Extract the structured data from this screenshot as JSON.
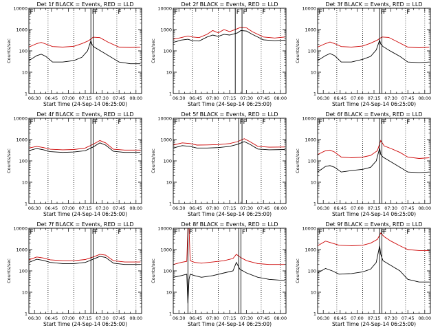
{
  "chart_data": [
    {
      "type": "line",
      "title": "Det 1f BLACK = Events, RED = LLD",
      "xlabel": "Start Time (24-Sep-14 06:25:00)",
      "ylabel": "Counts/sec",
      "yscale": "log",
      "ylim": [
        1,
        10000
      ],
      "xlim": [
        "06:25",
        "08:05"
      ],
      "x_ticks": [
        "06:30",
        "06:45",
        "07:00",
        "07:15",
        "07:30",
        "07:45",
        "08:00"
      ],
      "y_ticks": [
        "1",
        "10",
        "100",
        "1000",
        "10000"
      ],
      "markers": [
        "F",
        "F",
        "F",
        "F"
      ],
      "series": [
        {
          "color": "#cc0000",
          "x": [
            "06:25",
            "06:32",
            "06:36",
            "06:40",
            "06:46",
            "06:55",
            "07:05",
            "07:12",
            "07:18",
            "07:22",
            "07:28",
            "07:35",
            "07:45",
            "07:55",
            "08:04"
          ],
          "values": [
            150,
            220,
            250,
            210,
            160,
            150,
            165,
            220,
            300,
            440,
            420,
            260,
            150,
            145,
            150
          ]
        },
        {
          "color": "#000000",
          "x": [
            "06:25",
            "06:32",
            "06:36",
            "06:40",
            "06:46",
            "06:55",
            "07:05",
            "07:12",
            "07:17",
            "07:20",
            "07:21",
            "07:23",
            "07:30",
            "07:38",
            "07:45",
            "07:55",
            "08:04"
          ],
          "values": [
            35,
            60,
            70,
            55,
            30,
            30,
            35,
            50,
            100,
            300,
            200,
            150,
            90,
            50,
            30,
            25,
            25
          ]
        }
      ],
      "vlines_solid": [
        "07:20",
        "07:22"
      ],
      "vlines_dotted": [
        "06:42",
        "07:05",
        "07:43",
        "08:00"
      ]
    },
    {
      "type": "line",
      "title": "Det 2f BLACK = Events, RED = LLD",
      "xlabel": "Start Time (24-Sep-14 06:25:00)",
      "ylabel": "Counts/sec",
      "yscale": "log",
      "ylim": [
        1,
        10000
      ],
      "xlim": [
        "06:25",
        "08:05"
      ],
      "x_ticks": [
        "06:30",
        "06:45",
        "07:00",
        "07:15",
        "07:30",
        "07:45",
        "08:00"
      ],
      "y_ticks": [
        "1",
        "10",
        "100",
        "1000",
        "10000"
      ],
      "markers": [
        "F",
        "F",
        "F",
        "F"
      ],
      "series": [
        {
          "color": "#cc0000",
          "x": [
            "06:25",
            "06:32",
            "06:38",
            "06:42",
            "06:48",
            "06:55",
            "07:00",
            "07:05",
            "07:10",
            "07:15",
            "07:22",
            "07:25",
            "07:30",
            "07:35",
            "07:45",
            "07:55",
            "08:04"
          ],
          "values": [
            350,
            420,
            500,
            450,
            420,
            600,
            900,
            700,
            1000,
            800,
            1100,
            1300,
            1200,
            800,
            450,
            400,
            450
          ]
        },
        {
          "color": "#000000",
          "x": [
            "06:25",
            "06:32",
            "06:38",
            "06:42",
            "06:48",
            "06:55",
            "07:00",
            "07:05",
            "07:10",
            "07:15",
            "07:22",
            "07:25",
            "07:30",
            "07:35",
            "07:45",
            "07:55",
            "08:04"
          ],
          "values": [
            250,
            320,
            350,
            300,
            290,
            450,
            550,
            480,
            600,
            550,
            700,
            900,
            850,
            600,
            330,
            300,
            320
          ]
        }
      ],
      "vlines_solid": [
        "07:20",
        "07:26"
      ],
      "vlines_dotted": [
        "06:42",
        "07:05",
        "07:43",
        "08:00"
      ]
    },
    {
      "type": "line",
      "title": "Det 3f BLACK = Events, RED = LLD",
      "xlabel": "Start Time (24-Sep-14 06:25:00)",
      "ylabel": "Counts/sec",
      "yscale": "log",
      "ylim": [
        1,
        10000
      ],
      "xlim": [
        "06:25",
        "08:05"
      ],
      "x_ticks": [
        "06:30",
        "06:45",
        "07:00",
        "07:15",
        "07:30",
        "07:45",
        "08:00"
      ],
      "y_ticks": [
        "1",
        "10",
        "100",
        "1000",
        "10000"
      ],
      "markers": [
        "F",
        "F",
        "F",
        "F"
      ],
      "series": [
        {
          "color": "#cc0000",
          "x": [
            "06:25",
            "06:32",
            "06:36",
            "06:40",
            "06:46",
            "06:55",
            "07:05",
            "07:12",
            "07:18",
            "07:22",
            "07:28",
            "07:35",
            "07:45",
            "07:55",
            "08:04"
          ],
          "values": [
            150,
            220,
            260,
            220,
            160,
            150,
            170,
            230,
            320,
            450,
            430,
            280,
            150,
            140,
            150
          ]
        },
        {
          "color": "#000000",
          "x": [
            "06:25",
            "06:32",
            "06:36",
            "06:40",
            "06:46",
            "06:55",
            "07:05",
            "07:12",
            "07:17",
            "07:20",
            "07:21",
            "07:23",
            "07:30",
            "07:38",
            "07:45",
            "07:55",
            "08:04"
          ],
          "values": [
            35,
            60,
            75,
            60,
            30,
            30,
            40,
            55,
            110,
            320,
            210,
            160,
            95,
            55,
            30,
            28,
            30
          ]
        }
      ],
      "vlines_solid": [
        "07:20",
        "07:22"
      ],
      "vlines_dotted": [
        "06:42",
        "07:05",
        "07:43",
        "08:00"
      ]
    },
    {
      "type": "line",
      "title": "Det 4f BLACK = Events, RED = LLD",
      "xlabel": "Start Time (24-Sep-14 06:25:00)",
      "ylabel": "Counts/sec",
      "yscale": "log",
      "ylim": [
        1,
        10000
      ],
      "xlim": [
        "06:25",
        "08:05"
      ],
      "x_ticks": [
        "06:30",
        "06:45",
        "07:00",
        "07:15",
        "07:30",
        "07:45",
        "08:00"
      ],
      "y_ticks": [
        "1",
        "10",
        "100",
        "1000",
        "10000"
      ],
      "markers": [
        "F",
        "F",
        "F",
        "F"
      ],
      "series": [
        {
          "color": "#cc0000",
          "x": [
            "06:25",
            "06:32",
            "06:38",
            "06:44",
            "06:55",
            "07:05",
            "07:15",
            "07:22",
            "07:28",
            "07:33",
            "07:40",
            "07:50",
            "08:04"
          ],
          "values": [
            400,
            480,
            420,
            350,
            330,
            340,
            400,
            600,
            900,
            700,
            350,
            320,
            320
          ]
        },
        {
          "color": "#000000",
          "x": [
            "06:25",
            "06:32",
            "06:38",
            "06:44",
            "06:55",
            "07:05",
            "07:15",
            "07:22",
            "07:28",
            "07:33",
            "07:40",
            "07:50",
            "08:04"
          ],
          "values": [
            300,
            380,
            330,
            270,
            250,
            260,
            300,
            450,
            700,
            550,
            280,
            250,
            250
          ]
        }
      ],
      "vlines_solid": [
        "07:20",
        "07:22"
      ],
      "vlines_dotted": [
        "06:42",
        "07:05",
        "07:43",
        "08:00"
      ]
    },
    {
      "type": "line",
      "title": "Det 5f BLACK = Events, RED = LLD",
      "xlabel": "Start Time (24-Sep-14 06:25:00)",
      "ylabel": "Counts/sec",
      "yscale": "log",
      "ylim": [
        1,
        10000
      ],
      "xlim": [
        "06:25",
        "08:05"
      ],
      "x_ticks": [
        "06:30",
        "06:45",
        "07:00",
        "07:15",
        "07:30",
        "07:45",
        "08:00"
      ],
      "y_ticks": [
        "1",
        "10",
        "100",
        "1000",
        "10000"
      ],
      "markers": [
        "F",
        "F",
        "F",
        "F"
      ],
      "series": [
        {
          "color": "#cc0000",
          "x": [
            "06:25",
            "06:33",
            "06:40",
            "06:46",
            "06:55",
            "07:05",
            "07:15",
            "07:22",
            "07:28",
            "07:33",
            "07:40",
            "07:50",
            "08:04"
          ],
          "values": [
            550,
            700,
            650,
            550,
            560,
            580,
            650,
            800,
            1100,
            800,
            480,
            440,
            450
          ]
        },
        {
          "color": "#000000",
          "x": [
            "06:25",
            "06:33",
            "06:40",
            "06:46",
            "06:55",
            "07:05",
            "07:15",
            "07:22",
            "07:28",
            "07:33",
            "07:40",
            "07:50",
            "08:04"
          ],
          "values": [
            400,
            520,
            480,
            400,
            400,
            420,
            480,
            600,
            800,
            600,
            360,
            330,
            340
          ]
        }
      ],
      "vlines_solid": [
        "07:23",
        "07:26"
      ],
      "vlines_dotted": [
        "06:42",
        "07:05",
        "07:43",
        "08:00"
      ]
    },
    {
      "type": "line",
      "title": "Det 6f BLACK = Events, RED = LLD",
      "xlabel": "Start Time (24-Sep-14 06:25:00)",
      "ylabel": "Counts/sec",
      "yscale": "log",
      "ylim": [
        1,
        10000
      ],
      "xlim": [
        "06:25",
        "08:05"
      ],
      "x_ticks": [
        "06:30",
        "06:45",
        "07:00",
        "07:15",
        "07:30",
        "07:45",
        "08:00"
      ],
      "y_ticks": [
        "1",
        "10",
        "100",
        "1000",
        "10000"
      ],
      "markers": [
        "F",
        "F",
        "F",
        "F"
      ],
      "series": [
        {
          "color": "#cc0000",
          "x": [
            "06:25",
            "06:32",
            "06:36",
            "06:40",
            "06:46",
            "06:55",
            "07:05",
            "07:12",
            "07:18",
            "07:21",
            "07:24",
            "07:30",
            "07:38",
            "07:45",
            "07:55",
            "08:04"
          ],
          "values": [
            200,
            300,
            320,
            260,
            150,
            140,
            150,
            180,
            300,
            900,
            500,
            380,
            250,
            150,
            130,
            140
          ]
        },
        {
          "color": "#000000",
          "x": [
            "06:25",
            "06:32",
            "06:36",
            "06:40",
            "06:46",
            "06:55",
            "07:05",
            "07:12",
            "07:17",
            "07:20",
            "07:21",
            "07:23",
            "07:30",
            "07:38",
            "07:45",
            "07:55",
            "08:04"
          ],
          "values": [
            30,
            55,
            60,
            50,
            30,
            35,
            40,
            50,
            100,
            400,
            200,
            150,
            90,
            50,
            30,
            28,
            30
          ]
        }
      ],
      "vlines_solid": [
        "07:20",
        "07:22"
      ],
      "vlines_dotted": [
        "06:42",
        "07:05",
        "07:43",
        "08:00"
      ]
    },
    {
      "type": "line",
      "title": "Det 7f BLACK = Events, RED = LLD",
      "xlabel": "Start Time (24-Sep-14 06:25:00)",
      "ylabel": "Counts/sec",
      "yscale": "log",
      "ylim": [
        1,
        10000
      ],
      "xlim": [
        "06:25",
        "08:05"
      ],
      "x_ticks": [
        "06:30",
        "06:45",
        "07:00",
        "07:15",
        "07:30",
        "07:45",
        "08:00"
      ],
      "y_ticks": [
        "1",
        "10",
        "100",
        "1000",
        "10000"
      ],
      "markers": [
        "F",
        "F",
        "F",
        "F"
      ],
      "series": [
        {
          "color": "#cc0000",
          "x": [
            "06:25",
            "06:32",
            "06:38",
            "06:44",
            "06:55",
            "07:05",
            "07:15",
            "07:22",
            "07:28",
            "07:33",
            "07:40",
            "07:50",
            "08:04"
          ],
          "values": [
            330,
            450,
            400,
            330,
            300,
            300,
            340,
            450,
            600,
            550,
            300,
            260,
            260
          ]
        },
        {
          "color": "#000000",
          "x": [
            "06:25",
            "06:32",
            "06:38",
            "06:44",
            "06:55",
            "07:05",
            "07:15",
            "07:22",
            "07:28",
            "07:33",
            "07:40",
            "07:50",
            "08:04"
          ],
          "values": [
            250,
            350,
            310,
            250,
            220,
            220,
            250,
            350,
            480,
            430,
            230,
            200,
            200
          ]
        }
      ],
      "vlines_solid": [
        "07:20",
        "07:22"
      ],
      "vlines_dotted": [
        "06:42",
        "07:05",
        "07:43",
        "08:00"
      ]
    },
    {
      "type": "line",
      "title": "Det 8f BLACK = Events, RED = LLD",
      "xlabel": "Start Time (24-Sep-14 06:25:00)",
      "ylabel": "Counts/sec",
      "yscale": "log",
      "ylim": [
        1,
        10000
      ],
      "xlim": [
        "06:25",
        "08:05"
      ],
      "x_ticks": [
        "06:30",
        "06:45",
        "07:00",
        "07:15",
        "07:30",
        "07:45",
        "08:00"
      ],
      "y_ticks": [
        "1",
        "10",
        "100",
        "1000",
        "10000"
      ],
      "markers": [
        "F",
        "F",
        "F",
        "F"
      ],
      "series": [
        {
          "color": "#cc0000",
          "x": [
            "06:25",
            "06:32",
            "06:37",
            "06:38",
            "06:39",
            "06:40",
            "06:44",
            "06:50",
            "07:00",
            "07:10",
            "07:18",
            "07:21",
            "07:24",
            "07:30",
            "07:40",
            "07:50",
            "08:04"
          ],
          "values": [
            200,
            250,
            280,
            10000,
            10000,
            300,
            250,
            230,
            260,
            300,
            380,
            600,
            450,
            300,
            220,
            200,
            200
          ]
        },
        {
          "color": "#000000",
          "x": [
            "06:25",
            "06:32",
            "06:37",
            "06:38",
            "06:39",
            "06:40",
            "06:44",
            "06:50",
            "07:00",
            "07:10",
            "07:18",
            "07:21",
            "07:24",
            "07:30",
            "07:40",
            "07:50",
            "08:04"
          ],
          "values": [
            50,
            60,
            70,
            3,
            40,
            70,
            60,
            50,
            60,
            80,
            100,
            250,
            120,
            80,
            50,
            40,
            35
          ]
        }
      ],
      "vlines_solid": [
        "06:38",
        "07:23",
        "07:25"
      ],
      "vlines_dotted": [
        "06:42",
        "07:05",
        "07:43",
        "08:00"
      ]
    },
    {
      "type": "line",
      "title": "Det 9f BLACK = Events, RED = LLD",
      "xlabel": "Start Time (24-Sep-14 06:25:00)",
      "ylabel": "Counts/sec",
      "yscale": "log",
      "ylim": [
        1,
        10000
      ],
      "xlim": [
        "06:25",
        "08:05"
      ],
      "x_ticks": [
        "06:30",
        "06:45",
        "07:00",
        "07:15",
        "07:30",
        "07:45",
        "08:00"
      ],
      "y_ticks": [
        "1",
        "10",
        "100",
        "1000",
        "10000"
      ],
      "markers": [
        "F",
        "F",
        "F",
        "F"
      ],
      "series": [
        {
          "color": "#cc0000",
          "x": [
            "06:25",
            "06:32",
            "06:38",
            "06:44",
            "06:55",
            "07:05",
            "07:12",
            "07:18",
            "07:21",
            "07:24",
            "07:30",
            "07:38",
            "07:45",
            "07:55",
            "08:04"
          ],
          "values": [
            1500,
            2500,
            2000,
            1600,
            1500,
            1600,
            2000,
            3000,
            6000,
            4000,
            2500,
            1500,
            1000,
            900,
            900
          ]
        },
        {
          "color": "#000000",
          "x": [
            "06:25",
            "06:32",
            "06:38",
            "06:44",
            "06:55",
            "07:05",
            "07:12",
            "07:17",
            "07:20",
            "07:21",
            "07:23",
            "07:30",
            "07:38",
            "07:45",
            "07:55",
            "08:04"
          ],
          "values": [
            80,
            130,
            100,
            70,
            75,
            90,
            120,
            250,
            1500,
            600,
            300,
            180,
            100,
            40,
            30,
            30
          ]
        }
      ],
      "vlines_solid": [
        "07:20",
        "07:22"
      ],
      "vlines_dotted": [
        "06:42",
        "07:05",
        "07:43",
        "08:00"
      ]
    }
  ]
}
